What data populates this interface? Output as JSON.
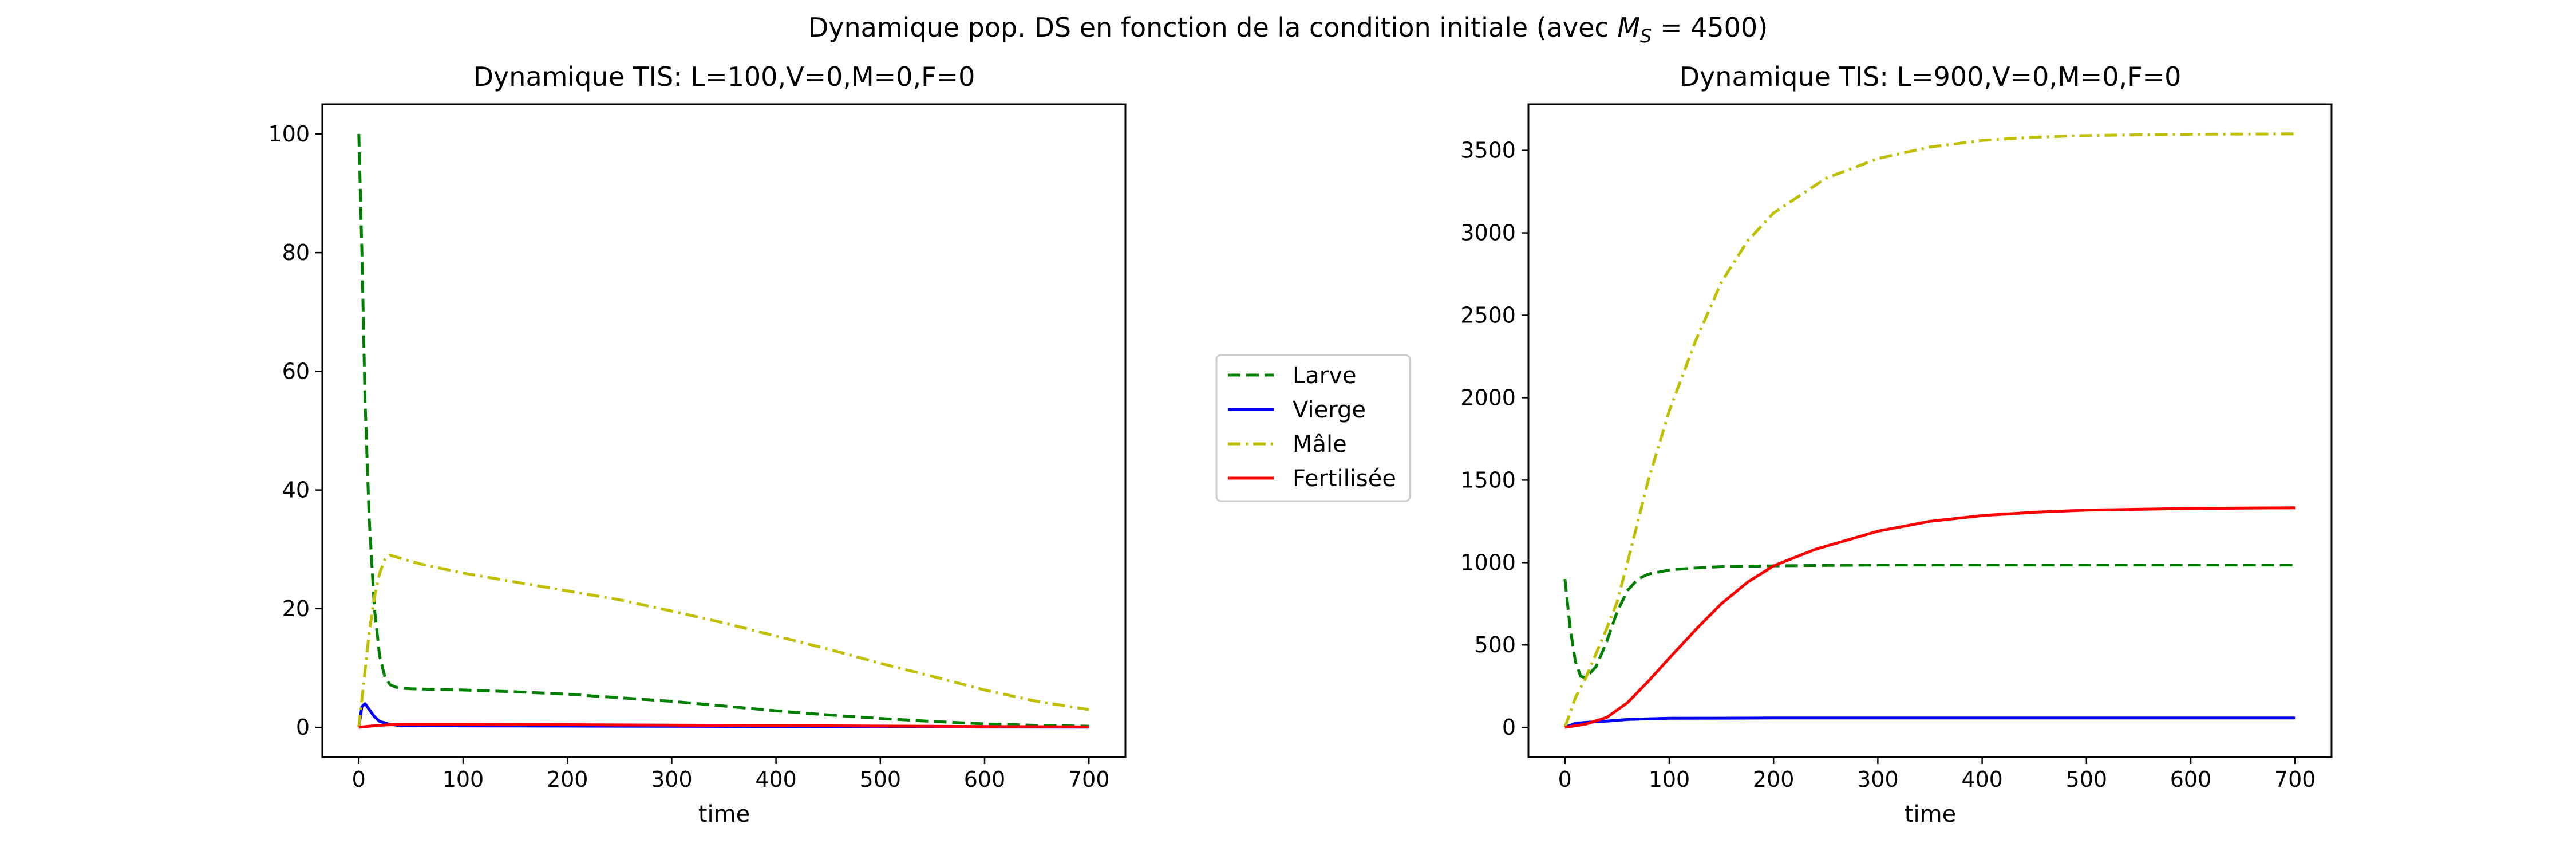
{
  "figure": {
    "suptitle_main": "Dynamique pop. DS en fonction de la condition initiale (avec ",
    "suptitle_var": "M",
    "suptitle_sub": "S",
    "suptitle_tail": " = 4500)"
  },
  "legend": {
    "entries": [
      {
        "label": "Larve",
        "color": "#008000",
        "style": "dashed"
      },
      {
        "label": "Vierge",
        "color": "#0000ff",
        "style": "solid"
      },
      {
        "label": "Mâle",
        "color": "#bfbf00",
        "style": "dashdot"
      },
      {
        "label": "Fertilisée",
        "color": "#ff0000",
        "style": "solid"
      }
    ]
  },
  "chart_data": [
    {
      "type": "line",
      "title": "Dynamique TIS: L=100,V=0,M=0,F=0",
      "xlabel": "time",
      "ylabel": "",
      "xlim": [
        -35,
        735
      ],
      "ylim": [
        -5,
        105
      ],
      "xticks": [
        0,
        100,
        200,
        300,
        400,
        500,
        600,
        700
      ],
      "yticks": [
        0,
        20,
        40,
        60,
        80,
        100
      ],
      "series": [
        {
          "name": "Larve",
          "color": "#008000",
          "style": "dashed",
          "x": [
            0,
            3,
            6,
            10,
            15,
            20,
            25,
            30,
            35,
            40,
            50,
            100,
            150,
            200,
            250,
            300,
            350,
            400,
            450,
            500,
            550,
            600,
            650,
            700
          ],
          "y": [
            100,
            80,
            55,
            35,
            20,
            12,
            8.5,
            7.2,
            6.8,
            6.6,
            6.5,
            6.3,
            6.0,
            5.6,
            5.0,
            4.4,
            3.6,
            2.8,
            2.1,
            1.5,
            1.0,
            0.6,
            0.35,
            0.2
          ]
        },
        {
          "name": "Vierge",
          "color": "#0000ff",
          "style": "solid",
          "x": [
            0,
            3,
            6,
            10,
            15,
            20,
            30,
            40,
            100,
            200,
            300,
            400,
            500,
            600,
            700
          ],
          "y": [
            0,
            3.5,
            4.0,
            3.0,
            1.8,
            1.0,
            0.5,
            0.3,
            0.25,
            0.22,
            0.18,
            0.14,
            0.1,
            0.06,
            0.04
          ]
        },
        {
          "name": "Mâle",
          "color": "#bfbf00",
          "style": "dashdot",
          "x": [
            0,
            5,
            10,
            15,
            20,
            25,
            30,
            40,
            60,
            100,
            150,
            200,
            250,
            300,
            350,
            400,
            450,
            500,
            550,
            600,
            650,
            700
          ],
          "y": [
            0,
            8,
            16,
            22,
            26,
            28.3,
            29,
            28.5,
            27.5,
            26,
            24.5,
            23,
            21.5,
            19.6,
            17.6,
            15.4,
            13.2,
            10.8,
            8.6,
            6.3,
            4.4,
            3.0
          ]
        },
        {
          "name": "Fertilisée",
          "color": "#ff0000",
          "style": "solid",
          "x": [
            0,
            10,
            20,
            30,
            40,
            100,
            200,
            300,
            400,
            500,
            600,
            700
          ],
          "y": [
            0,
            0.2,
            0.35,
            0.45,
            0.5,
            0.5,
            0.45,
            0.38,
            0.3,
            0.22,
            0.14,
            0.08
          ]
        }
      ]
    },
    {
      "type": "line",
      "title": "Dynamique TIS: L=900,V=0,M=0,F=0",
      "xlabel": "time",
      "ylabel": "",
      "xlim": [
        -35,
        735
      ],
      "ylim": [
        -180,
        3780
      ],
      "xticks": [
        0,
        100,
        200,
        300,
        400,
        500,
        600,
        700
      ],
      "yticks": [
        0,
        500,
        1000,
        1500,
        2000,
        2500,
        3000,
        3500
      ],
      "series": [
        {
          "name": "Larve",
          "color": "#008000",
          "style": "dashed",
          "x": [
            0,
            5,
            10,
            15,
            20,
            30,
            40,
            50,
            60,
            70,
            80,
            100,
            120,
            150,
            200,
            300,
            400,
            500,
            600,
            700
          ],
          "y": [
            900,
            600,
            400,
            310,
            300,
            370,
            520,
            700,
            830,
            900,
            930,
            955,
            965,
            975,
            980,
            985,
            985,
            985,
            985,
            985
          ]
        },
        {
          "name": "Vierge",
          "color": "#0000ff",
          "style": "solid",
          "x": [
            0,
            10,
            20,
            40,
            60,
            80,
            100,
            150,
            200,
            300,
            400,
            500,
            600,
            700
          ],
          "y": [
            0,
            25,
            30,
            38,
            48,
            52,
            55,
            56,
            57,
            57,
            57,
            57,
            57,
            57
          ]
        },
        {
          "name": "Mâle",
          "color": "#bfbf00",
          "style": "dashdot",
          "x": [
            0,
            10,
            20,
            30,
            40,
            50,
            60,
            80,
            100,
            125,
            150,
            175,
            200,
            250,
            300,
            350,
            400,
            450,
            500,
            600,
            700
          ],
          "y": [
            0,
            180,
            300,
            450,
            600,
            760,
            1000,
            1500,
            1920,
            2340,
            2700,
            2950,
            3120,
            3330,
            3450,
            3520,
            3560,
            3580,
            3590,
            3598,
            3600
          ]
        },
        {
          "name": "Fertilisée",
          "color": "#ff0000",
          "style": "solid",
          "x": [
            0,
            20,
            40,
            60,
            80,
            100,
            125,
            150,
            175,
            200,
            240,
            300,
            350,
            400,
            450,
            500,
            600,
            700
          ],
          "y": [
            0,
            20,
            60,
            150,
            280,
            420,
            590,
            750,
            880,
            980,
            1080,
            1190,
            1250,
            1285,
            1305,
            1318,
            1328,
            1332
          ]
        }
      ]
    }
  ]
}
